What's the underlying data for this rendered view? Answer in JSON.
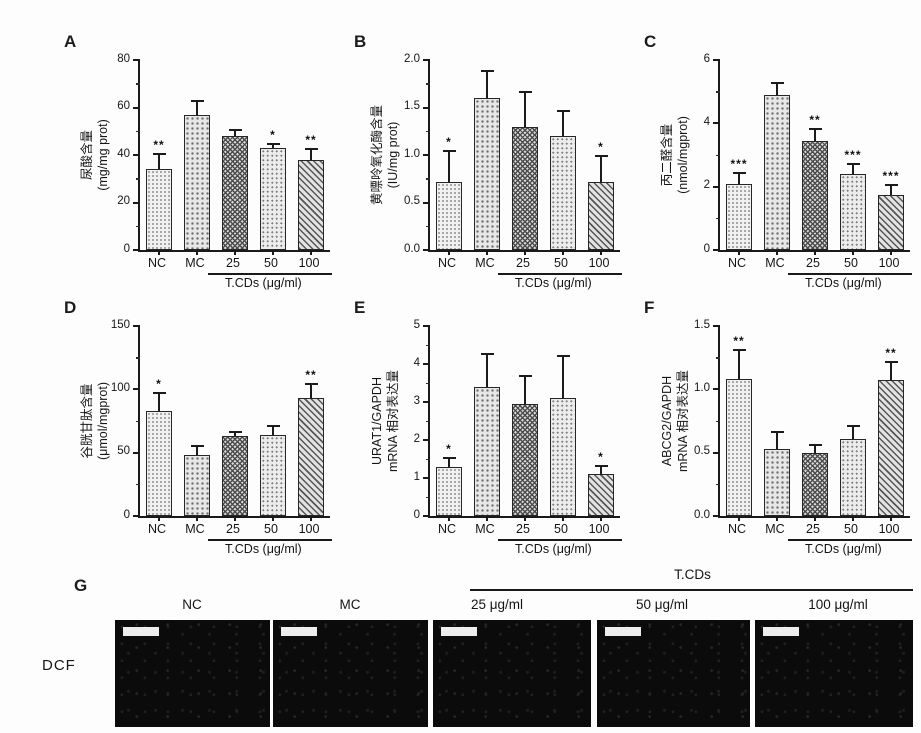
{
  "colors": {
    "axis": "#1a1a1a",
    "text": "#161616",
    "image_background": "#0b0b0b",
    "scale_bar": "#ededed"
  },
  "chart_data": [
    {
      "type": "bar",
      "panel": "A",
      "ylabel_lines": [
        "尿酸含量",
        "(mg/mg prot)"
      ],
      "categories": [
        "NC",
        "MC",
        "25",
        "50",
        "100"
      ],
      "values": [
        34,
        57,
        48,
        43,
        38
      ],
      "errors": [
        7,
        6,
        3,
        2,
        5
      ],
      "sig": [
        "**",
        "",
        "",
        "*",
        "**"
      ],
      "ylim": [
        0,
        80
      ],
      "yticks": [
        "0",
        "20",
        "40",
        "60",
        "80"
      ],
      "group_label": "T.CDs (μg/ml)",
      "group_span": [
        "25",
        "50",
        "100"
      ],
      "legend": "none",
      "grid": "off"
    },
    {
      "type": "bar",
      "panel": "B",
      "ylabel_lines": [
        "黄嘌呤氧化酶含量",
        "(IU/mg prot)"
      ],
      "categories": [
        "NC",
        "MC",
        "25",
        "50",
        "100"
      ],
      "values": [
        0.72,
        1.6,
        1.3,
        1.2,
        0.72
      ],
      "errors": [
        0.33,
        0.3,
        0.37,
        0.27,
        0.28
      ],
      "sig": [
        "*",
        "",
        "",
        "",
        "*"
      ],
      "ylim": [
        0,
        2
      ],
      "yticks": [
        "0.0",
        "0.5",
        "1.0",
        "1.5",
        "2.0"
      ],
      "group_label": "T.CDs (μg/ml)",
      "group_span": [
        "25",
        "50",
        "100"
      ],
      "legend": "none",
      "grid": "off"
    },
    {
      "type": "bar",
      "panel": "C",
      "ylabel_lines": [
        "丙二醛含量",
        "(nmol/mgprot)"
      ],
      "categories": [
        "NC",
        "MC",
        "25",
        "50",
        "100"
      ],
      "values": [
        2.1,
        4.9,
        3.45,
        2.4,
        1.75
      ],
      "errors": [
        0.35,
        0.4,
        0.4,
        0.35,
        0.35
      ],
      "sig": [
        "***",
        "",
        "**",
        "***",
        "***"
      ],
      "ylim": [
        0,
        6
      ],
      "yticks": [
        "0",
        "2",
        "4",
        "6"
      ],
      "group_label": "T.CDs (μg/ml)",
      "group_span": [
        "25",
        "50",
        "100"
      ],
      "legend": "none",
      "grid": "off"
    },
    {
      "type": "bar",
      "panel": "D",
      "ylabel_lines": [
        "谷胱甘肽含量",
        "(μmol/mgprot)"
      ],
      "categories": [
        "NC",
        "MC",
        "25",
        "50",
        "100"
      ],
      "values": [
        83,
        48,
        63,
        64,
        93
      ],
      "errors": [
        15,
        8,
        4,
        8,
        12
      ],
      "sig": [
        "*",
        "",
        "",
        "",
        "**"
      ],
      "ylim": [
        0,
        150
      ],
      "yticks": [
        "0",
        "50",
        "100",
        "150"
      ],
      "group_label": "T.CDs (μg/ml)",
      "group_span": [
        "25",
        "50",
        "100"
      ],
      "legend": "none",
      "grid": "off"
    },
    {
      "type": "bar",
      "panel": "E",
      "ylabel_lines": [
        "URAT1/GAPDH",
        "mRNA 相对表达量"
      ],
      "categories": [
        "NC",
        "MC",
        "25",
        "50",
        "100"
      ],
      "values": [
        1.3,
        3.4,
        2.95,
        3.1,
        1.1
      ],
      "errors": [
        0.25,
        0.9,
        0.75,
        1.15,
        0.25
      ],
      "sig": [
        "*",
        "",
        "",
        "",
        "*"
      ],
      "ylim": [
        0,
        5
      ],
      "yticks": [
        "0",
        "1",
        "2",
        "3",
        "4",
        "5"
      ],
      "group_label": "T.CDs (μg/ml)",
      "group_span": [
        "25",
        "50",
        "100"
      ],
      "legend": "none",
      "grid": "off"
    },
    {
      "type": "bar",
      "panel": "F",
      "ylabel_lines": [
        "ABCG2/GAPDH",
        "mRNA 相对表达量"
      ],
      "categories": [
        "NC",
        "MC",
        "25",
        "50",
        "100"
      ],
      "values": [
        1.08,
        0.53,
        0.5,
        0.61,
        1.07
      ],
      "errors": [
        0.24,
        0.14,
        0.07,
        0.11,
        0.15
      ],
      "sig": [
        "**",
        "",
        "",
        "",
        "**"
      ],
      "ylim": [
        0,
        1.5
      ],
      "yticks": [
        "0.0",
        "0.5",
        "1.0",
        "1.5"
      ],
      "group_label": "T.CDs (μg/ml)",
      "group_span": [
        "25",
        "50",
        "100"
      ],
      "legend": "none",
      "grid": "off"
    }
  ],
  "panel_g": {
    "label": "G",
    "row_label": "DCF",
    "group_header": "T.CDs",
    "image_labels": [
      "NC",
      "MC",
      "25 μg/ml",
      "50 μg/ml",
      "100 μg/ml"
    ],
    "images_have_scale_bar": true
  }
}
